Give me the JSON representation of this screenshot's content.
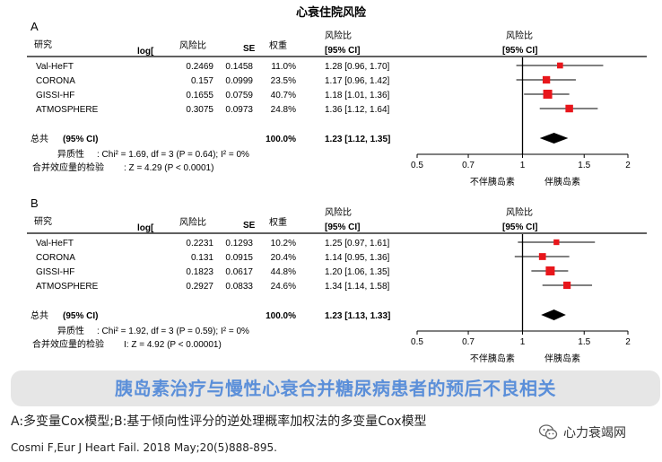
{
  "title": "心衰住院风险",
  "headers": {
    "study": "研究",
    "loghr": "log[",
    "hr": "风险比",
    "se": "SE",
    "weight": "权重",
    "ci_top": "风险比",
    "ci_bottom": "[95% CI]",
    "plot_top": "风险比",
    "plot_bottom": "[95% CI]"
  },
  "chart_data": [
    {
      "type": "forest",
      "panel": "A",
      "studies": [
        {
          "name": "Val-HeFT",
          "loghr": "0.2469",
          "se": "0.1458",
          "weight": "11.0%",
          "ci": "1.28 [0.96, 1.70]",
          "hr": 1.28,
          "lo": 0.96,
          "hi": 1.7
        },
        {
          "name": "CORONA",
          "loghr": "0.157",
          "se": "0.0999",
          "weight": "23.5%",
          "ci": "1.17 [0.96, 1.42]",
          "hr": 1.17,
          "lo": 0.96,
          "hi": 1.42
        },
        {
          "name": "GISSI-HF",
          "loghr": "0.1655",
          "se": "0.0759",
          "weight": "40.7%",
          "ci": "1.18 [1.01, 1.36]",
          "hr": 1.18,
          "lo": 1.01,
          "hi": 1.36
        },
        {
          "name": "ATMOSPHERE",
          "loghr": "0.3075",
          "se": "0.0973",
          "weight": "24.8%",
          "ci": "1.36 [1.12, 1.64]",
          "hr": 1.36,
          "lo": 1.12,
          "hi": 1.64
        }
      ],
      "total": {
        "label": "总共",
        "label_ci": "(95% CI)",
        "weight": "100.0%",
        "ci": "1.23 [1.12, 1.35]",
        "hr": 1.23,
        "lo": 1.12,
        "hi": 1.35
      },
      "heterogeneity_label": "异质性",
      "heterogeneity": ": Chi² = 1.69, df = 3 (P = 0.64); I² = 0%",
      "effect_label": "合并效应量的检验",
      "effect_test": ": Z = 4.29 (P < 0.0001)",
      "xticks": [
        0.5,
        0.7,
        1,
        1.5,
        2
      ],
      "xtick_labels": [
        "0.5",
        "0.7",
        "1",
        "1.5",
        "2"
      ],
      "xscale": "log",
      "xlim": [
        0.5,
        2
      ],
      "favours_left": "不伴胰岛素",
      "favours_right": "伴胰岛素"
    },
    {
      "type": "forest",
      "panel": "B",
      "studies": [
        {
          "name": "Val-HeFT",
          "loghr": "0.2231",
          "se": "0.1293",
          "weight": "10.2%",
          "ci": "1.25 [0.97, 1.61]",
          "hr": 1.25,
          "lo": 0.97,
          "hi": 1.61
        },
        {
          "name": "CORONA",
          "loghr": "0.131",
          "se": "0.0915",
          "weight": "20.4%",
          "ci": "1.14 [0.95, 1.36]",
          "hr": 1.14,
          "lo": 0.95,
          "hi": 1.36
        },
        {
          "name": "GISSI-HF",
          "loghr": "0.1823",
          "se": "0.0617",
          "weight": "44.8%",
          "ci": "1.20 [1.06, 1.35]",
          "hr": 1.2,
          "lo": 1.06,
          "hi": 1.35
        },
        {
          "name": "ATMOSPHERE",
          "loghr": "0.2927",
          "se": "0.0833",
          "weight": "24.6%",
          "ci": "1.34 [1.14, 1.58]",
          "hr": 1.34,
          "lo": 1.14,
          "hi": 1.58
        }
      ],
      "total": {
        "label": "总共",
        "label_ci": "(95% CI)",
        "weight": "100.0%",
        "ci": "1.23 [1.13, 1.33]",
        "hr": 1.23,
        "lo": 1.13,
        "hi": 1.33
      },
      "heterogeneity_label": "异质性",
      "heterogeneity": ": Chi² = 1.92, df = 3 (P = 0.59); I² = 0%",
      "effect_label": "合并效应量的检验",
      "effect_test": "I: Z = 4.92 (P < 0.00001)",
      "xticks": [
        0.5,
        0.7,
        1,
        1.5,
        2
      ],
      "xtick_labels": [
        "0.5",
        "0.7",
        "1",
        "1.5",
        "2"
      ],
      "xscale": "log",
      "xlim": [
        0.5,
        2
      ],
      "favours_left": "不伴胰岛素",
      "favours_right": "伴胰岛素"
    }
  ],
  "colors": {
    "marker": "#e8161b",
    "diamond": "#000000",
    "banner_text": "#5b8fd9",
    "banner_bg": "#e6e6e6"
  },
  "banner": "胰岛素治疗与慢性心衰合并糖尿病患者的预后不良相关",
  "caption": "A:多变量Cox模型;B:基于倾向性评分的逆处理概率加权法的多变量Cox模型",
  "citation": "Cosmi F,Eur J Heart Fail. 2018 May;20(5)888-895.",
  "brand": "心力衰竭网",
  "brand_icon": "wechat-icon"
}
